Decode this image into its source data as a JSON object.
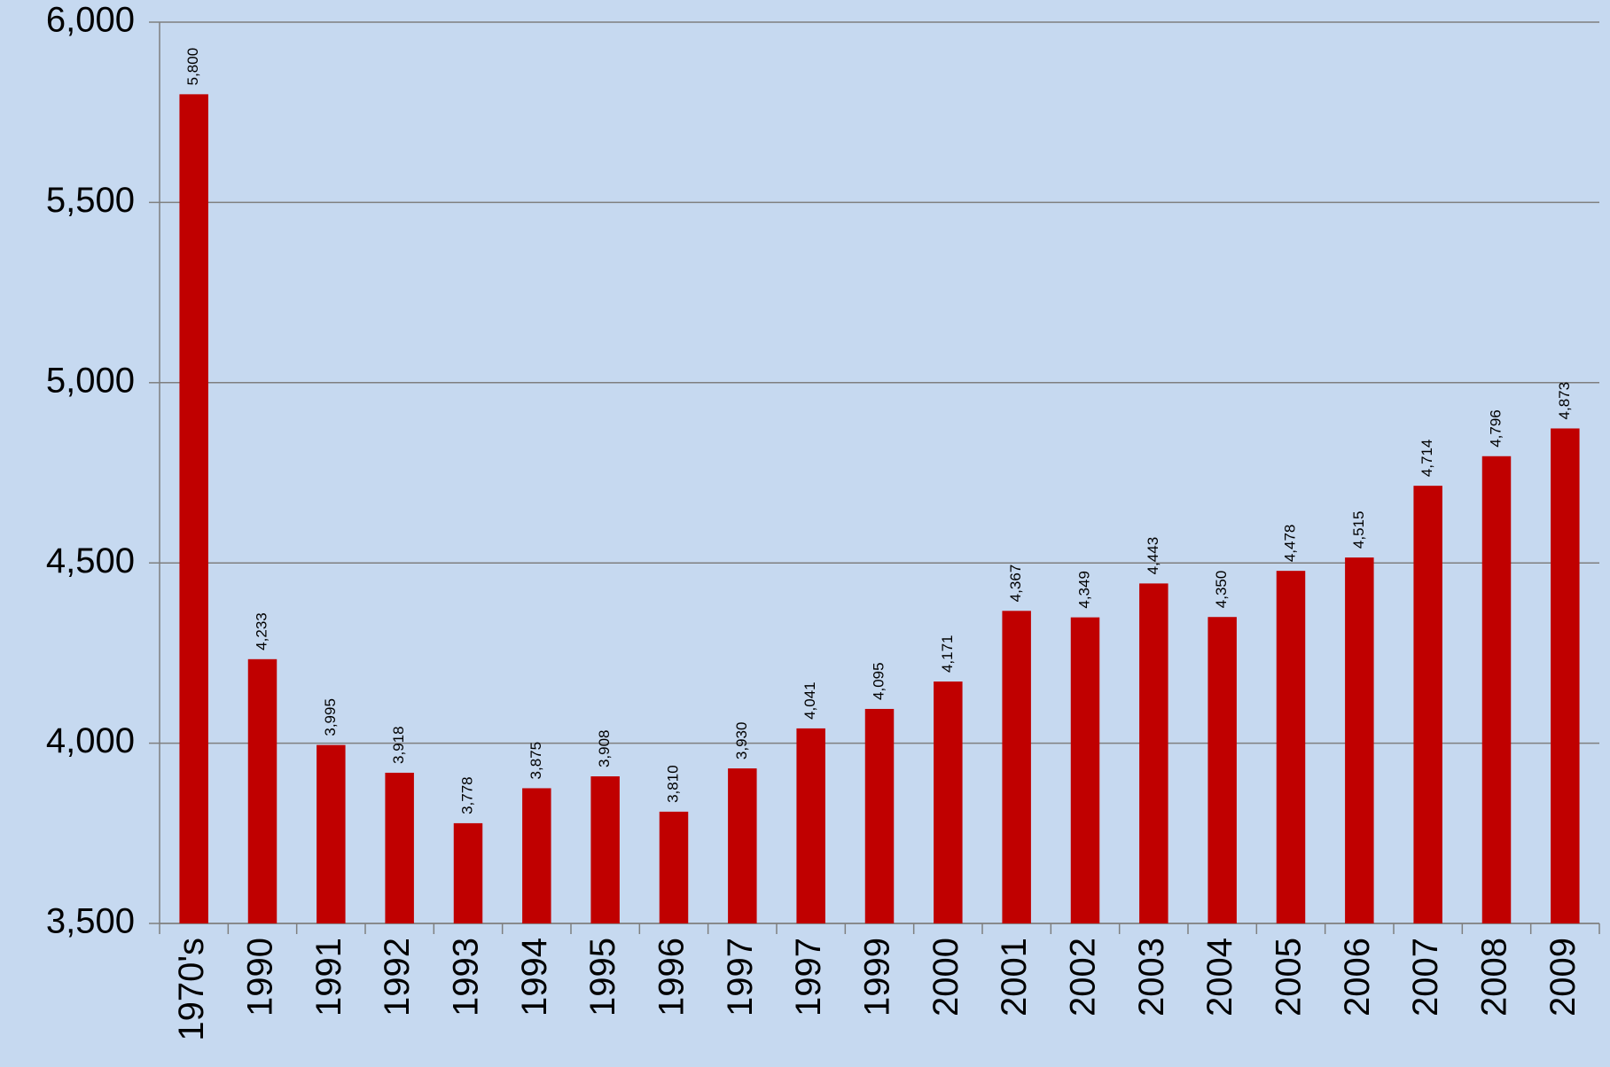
{
  "chart_data": {
    "type": "bar",
    "categories": [
      "1970's",
      "1990",
      "1991",
      "1992",
      "1993",
      "1994",
      "1995",
      "1996",
      "1997",
      "1997",
      "1999",
      "2000",
      "2001",
      "2002",
      "2003",
      "2004",
      "2005",
      "2006",
      "2007",
      "2008",
      "2009"
    ],
    "values": [
      5800,
      4233,
      3995,
      3918,
      3778,
      3875,
      3908,
      3810,
      3930,
      4041,
      4095,
      4171,
      4367,
      4349,
      4443,
      4350,
      4478,
      4515,
      4714,
      4796,
      4873
    ],
    "value_labels": [
      "5,800",
      "4,233",
      "3,995",
      "3,918",
      "3,778",
      "3,875",
      "3,908",
      "3,810",
      "3,930",
      "4,041",
      "4,095",
      "4,171",
      "4,367",
      "4,349",
      "4,443",
      "4,350",
      "4,478",
      "4,515",
      "4,714",
      "4,796",
      "4,873"
    ],
    "color": "#c00000",
    "ylim": [
      3500,
      6000
    ],
    "yticks": [
      {
        "value": 3500,
        "label": "3,500"
      },
      {
        "value": 4000,
        "label": "4,000"
      },
      {
        "value": 4500,
        "label": "4,500"
      },
      {
        "value": 5000,
        "label": "5,000"
      },
      {
        "value": 5500,
        "label": "5,500"
      },
      {
        "value": 6000,
        "label": "6,000"
      }
    ],
    "grid": true
  }
}
